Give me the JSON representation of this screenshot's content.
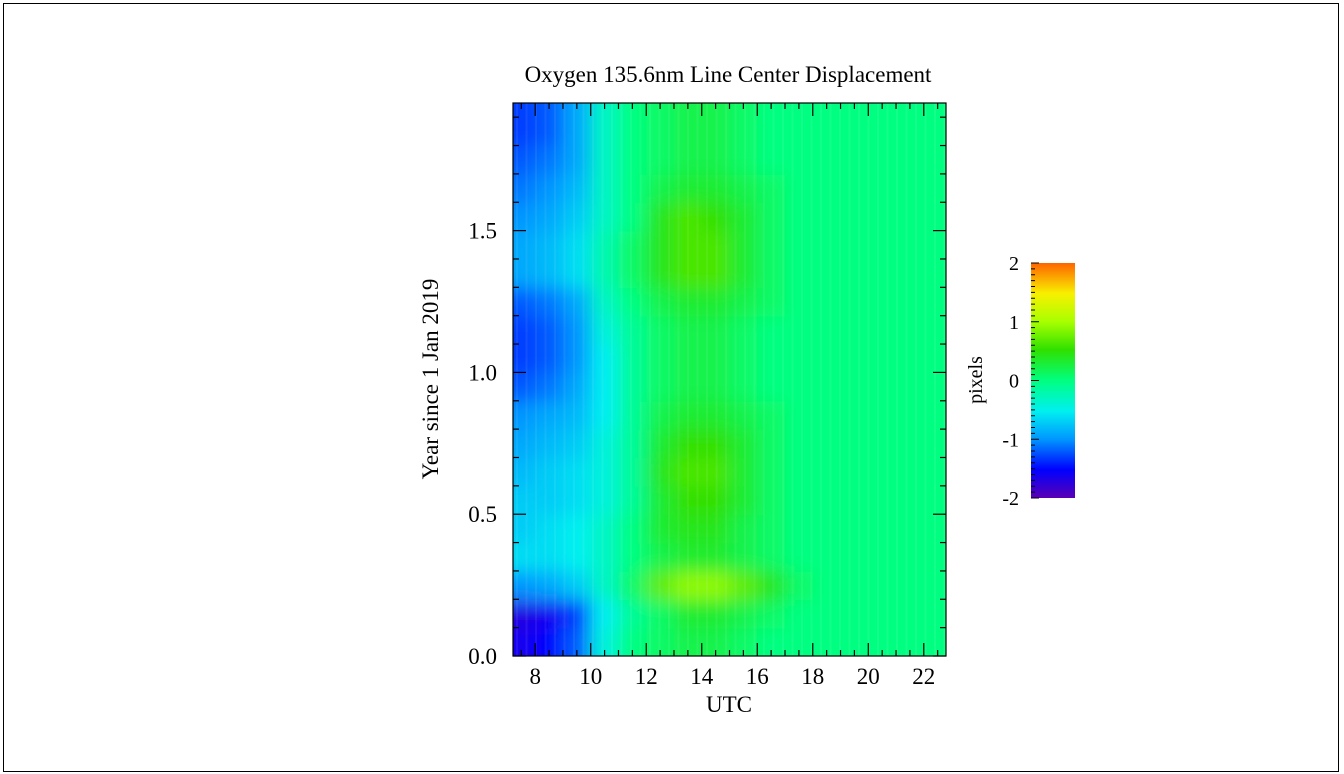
{
  "chart_data": {
    "type": "heatmap",
    "title": "Oxygen 135.6nm Line Center Displacement",
    "xlabel": "UTC",
    "ylabel": "Year since 1 Jan 2019",
    "xlim": [
      7.2,
      22.8
    ],
    "ylim": [
      0.0,
      1.95
    ],
    "x_ticks": [
      8,
      10,
      12,
      14,
      16,
      18,
      20,
      22
    ],
    "x_tick_labels": [
      "8",
      "10",
      "12",
      "14",
      "16",
      "18",
      "20",
      "22"
    ],
    "y_ticks": [
      0.0,
      0.5,
      1.0,
      1.5
    ],
    "y_tick_labels": [
      "0.0",
      "0.5",
      "1.0",
      "1.5"
    ],
    "colorbar": {
      "label": "pixels",
      "range": [
        -2,
        2
      ],
      "ticks": [
        2,
        1,
        0,
        -1,
        -2
      ],
      "tick_labels": [
        "2",
        "1",
        "0",
        "-1",
        "-2"
      ]
    },
    "x": [
      7.5,
      8.5,
      9.5,
      10.5,
      11.5,
      12.5,
      13.5,
      14.5,
      15.5,
      16.5,
      17.5,
      18.5,
      19.5,
      20.5,
      21.5,
      22.5
    ],
    "y": [
      0.05,
      0.15,
      0.25,
      0.35,
      0.45,
      0.55,
      0.65,
      0.75,
      0.85,
      0.95,
      1.05,
      1.15,
      1.25,
      1.35,
      1.45,
      1.55,
      1.65,
      1.75,
      1.85
    ],
    "z": [
      [
        -1.6,
        -1.5,
        -1.2,
        -0.4,
        0.0,
        0.1,
        0.2,
        0.2,
        0.1,
        0.0,
        0.0,
        0.0,
        0.0,
        0.0,
        0.0,
        0.0
      ],
      [
        -1.7,
        -1.6,
        -1.3,
        -0.5,
        -0.1,
        0.1,
        0.3,
        0.3,
        0.2,
        0.1,
        0.0,
        0.0,
        0.0,
        0.0,
        0.0,
        0.0
      ],
      [
        -1.0,
        -0.9,
        -0.7,
        -0.3,
        0.1,
        0.7,
        0.9,
        0.9,
        0.7,
        0.4,
        0.1,
        0.0,
        0.0,
        0.0,
        0.0,
        0.0
      ],
      [
        -0.6,
        -0.6,
        -0.5,
        -0.3,
        0.0,
        0.2,
        0.3,
        0.3,
        0.2,
        0.1,
        0.0,
        0.0,
        0.0,
        0.0,
        0.0,
        0.0
      ],
      [
        -0.7,
        -0.6,
        -0.5,
        -0.3,
        0.0,
        0.3,
        0.4,
        0.4,
        0.2,
        0.1,
        0.0,
        0.0,
        0.0,
        0.0,
        0.0,
        0.0
      ],
      [
        -0.7,
        -0.7,
        -0.6,
        -0.4,
        -0.1,
        0.3,
        0.5,
        0.5,
        0.3,
        0.1,
        0.0,
        0.0,
        0.0,
        0.0,
        0.0,
        0.0
      ],
      [
        -0.8,
        -0.7,
        -0.6,
        -0.4,
        -0.1,
        0.4,
        0.6,
        0.6,
        0.3,
        0.1,
        0.0,
        0.0,
        0.0,
        0.0,
        0.0,
        0.0
      ],
      [
        -0.9,
        -0.8,
        -0.7,
        -0.4,
        -0.1,
        0.3,
        0.5,
        0.5,
        0.3,
        0.1,
        0.0,
        0.0,
        0.0,
        0.0,
        0.0,
        0.0
      ],
      [
        -1.0,
        -0.9,
        -0.8,
        -0.5,
        -0.1,
        0.2,
        0.3,
        0.3,
        0.2,
        0.1,
        0.0,
        0.0,
        0.0,
        0.0,
        0.0,
        0.0
      ],
      [
        -1.2,
        -1.1,
        -0.9,
        -0.5,
        -0.1,
        0.1,
        0.2,
        0.2,
        0.1,
        0.0,
        0.0,
        0.0,
        0.0,
        0.0,
        0.0,
        0.0
      ],
      [
        -1.3,
        -1.2,
        -1.0,
        -0.5,
        -0.1,
        0.1,
        0.2,
        0.2,
        0.1,
        0.0,
        0.0,
        0.0,
        0.0,
        0.0,
        0.0,
        0.0
      ],
      [
        -1.3,
        -1.2,
        -1.0,
        -0.4,
        -0.1,
        0.1,
        0.2,
        0.2,
        0.1,
        0.0,
        0.0,
        0.0,
        0.0,
        0.0,
        0.0,
        0.0
      ],
      [
        -1.2,
        -1.1,
        -0.9,
        -0.3,
        0.0,
        0.2,
        0.3,
        0.3,
        0.2,
        0.1,
        0.0,
        0.0,
        0.0,
        0.0,
        0.0,
        0.0
      ],
      [
        -0.9,
        -0.8,
        -0.6,
        -0.2,
        0.1,
        0.4,
        0.6,
        0.6,
        0.3,
        0.1,
        0.0,
        0.0,
        0.0,
        0.0,
        0.0,
        0.0
      ],
      [
        -0.9,
        -0.8,
        -0.6,
        -0.2,
        0.1,
        0.4,
        0.6,
        0.6,
        0.3,
        0.1,
        0.0,
        0.0,
        0.0,
        0.0,
        0.0,
        0.0
      ],
      [
        -1.0,
        -0.9,
        -0.7,
        -0.3,
        0.0,
        0.4,
        0.6,
        0.5,
        0.3,
        0.1,
        0.0,
        0.0,
        0.0,
        0.0,
        0.0,
        0.0
      ],
      [
        -1.1,
        -1.0,
        -0.8,
        -0.3,
        0.0,
        0.2,
        0.3,
        0.3,
        0.2,
        0.1,
        0.0,
        0.0,
        0.0,
        0.0,
        0.0,
        0.0
      ],
      [
        -1.2,
        -1.1,
        -0.9,
        -0.3,
        0.0,
        0.1,
        0.2,
        0.2,
        0.1,
        0.0,
        0.0,
        0.0,
        0.0,
        0.0,
        0.0,
        0.0
      ],
      [
        -1.3,
        -1.2,
        -0.9,
        -0.3,
        0.0,
        0.1,
        0.2,
        0.2,
        0.1,
        0.0,
        0.0,
        0.0,
        0.0,
        0.0,
        0.0,
        0.0
      ]
    ]
  }
}
